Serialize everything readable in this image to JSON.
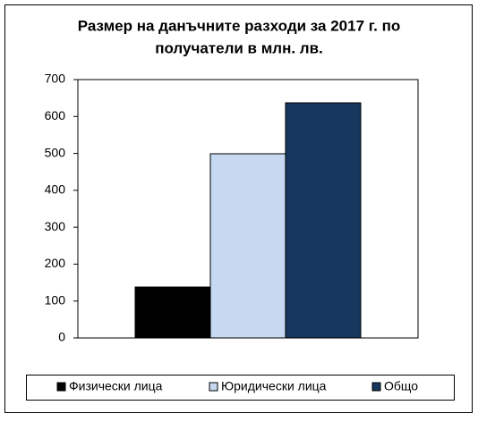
{
  "chart_data": {
    "type": "bar",
    "title": [
      "Размер на данъчните разходи за 2017 г. по",
      "получатели в млн. лв."
    ],
    "categories": [
      null
    ],
    "series": [
      {
        "name": "Физически лица",
        "color": "#000000",
        "values": [
          138
        ]
      },
      {
        "name": "Юридически лица",
        "color": "#c6d9f1",
        "values": [
          499
        ]
      },
      {
        "name": "Общо",
        "color": "#17375e",
        "values": [
          637
        ]
      }
    ],
    "ylim": [
      0,
      700
    ],
    "yticks": [
      0,
      100,
      200,
      300,
      400,
      500,
      600,
      700
    ],
    "grid": false,
    "legend": "bottom"
  }
}
